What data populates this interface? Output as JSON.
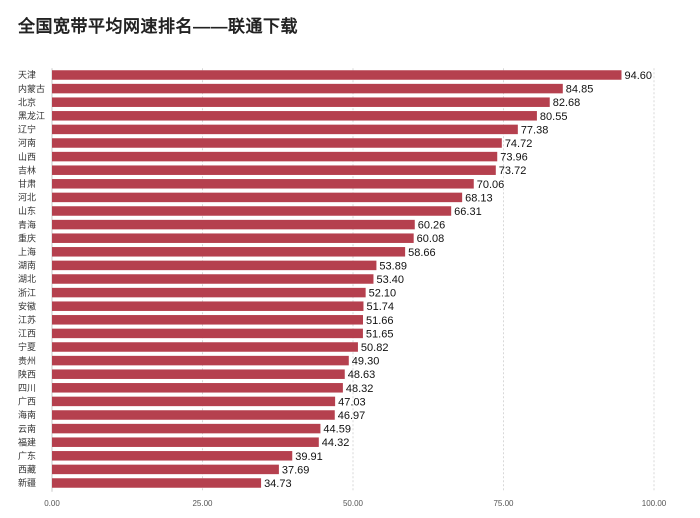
{
  "chart_data": {
    "type": "bar",
    "orientation": "horizontal",
    "title": "全国宽带平均网速排名——联通下载",
    "categories": [
      "天津",
      "内蒙古",
      "北京",
      "黑龙江",
      "辽宁",
      "河南",
      "山西",
      "吉林",
      "甘肃",
      "河北",
      "山东",
      "青海",
      "重庆",
      "上海",
      "湖南",
      "湖北",
      "浙江",
      "安徽",
      "江苏",
      "江西",
      "宁夏",
      "贵州",
      "陕西",
      "四川",
      "广西",
      "海南",
      "云南",
      "福建",
      "广东",
      "西藏",
      "新疆"
    ],
    "values": [
      94.6,
      84.85,
      82.68,
      80.55,
      77.38,
      74.72,
      73.96,
      73.72,
      70.06,
      68.13,
      66.31,
      60.26,
      60.08,
      58.66,
      53.89,
      53.4,
      52.1,
      51.74,
      51.66,
      51.65,
      50.82,
      49.3,
      48.63,
      48.32,
      47.03,
      46.97,
      44.59,
      44.32,
      39.91,
      37.69,
      34.73
    ],
    "value_labels": [
      "94.60",
      "84.85",
      "82.68",
      "80.55",
      "77.38",
      "74.72",
      "73.96",
      "73.72",
      "70.06",
      "68.13",
      "66.31",
      "60.26",
      "60.08",
      "58.66",
      "53.89",
      "53.40",
      "52.10",
      "51.74",
      "51.66",
      "51.65",
      "50.82",
      "49.30",
      "48.63",
      "48.32",
      "47.03",
      "46.97",
      "44.59",
      "44.32",
      "39.91",
      "37.69",
      "34.73"
    ],
    "x_ticks": [
      "0.00",
      "25.00",
      "50.00",
      "75.00",
      "100.00"
    ],
    "x_tick_values": [
      0,
      25,
      50,
      75,
      100
    ],
    "xlim": [
      0,
      100
    ],
    "xlabel": "",
    "ylabel": "",
    "grid": true,
    "legend": "none",
    "bar_color": "#b5404e"
  }
}
